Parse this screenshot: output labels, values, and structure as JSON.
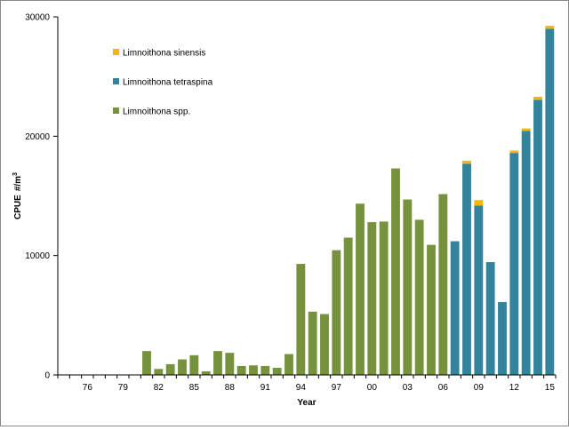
{
  "chart_data": {
    "type": "bar",
    "stacked": true,
    "title": "",
    "xlabel": "Year",
    "ylabel": "CPUE",
    "ylabel_unit": "#/m",
    "ylabel_unit_sup": "3",
    "ylim": [
      0,
      30000
    ],
    "yticks": [
      0,
      10000,
      20000,
      30000
    ],
    "ytick_labels": [
      "0",
      "10000",
      "20000",
      "30000"
    ],
    "legend_position": "upper-left",
    "grid": false,
    "x": [
      "74",
      "75",
      "76",
      "77",
      "78",
      "79",
      "80",
      "81",
      "82",
      "83",
      "84",
      "85",
      "86",
      "87",
      "88",
      "89",
      "90",
      "91",
      "92",
      "93",
      "94",
      "95",
      "96",
      "97",
      "98",
      "99",
      "00",
      "01",
      "02",
      "03",
      "04",
      "05",
      "06",
      "07",
      "08",
      "09",
      "10",
      "11",
      "12",
      "13",
      "14",
      "15"
    ],
    "x_tick_labels": [
      "76",
      "79",
      "82",
      "85",
      "88",
      "91",
      "94",
      "97",
      "00",
      "03",
      "06",
      "09",
      "12",
      "15"
    ],
    "series": [
      {
        "name": "Limnoithona spp.",
        "color": "#76923c",
        "values": [
          0,
          0,
          0,
          0,
          0,
          0,
          0,
          2000,
          500,
          900,
          1300,
          1650,
          300,
          2000,
          1850,
          750,
          800,
          750,
          600,
          1750,
          9300,
          5300,
          5100,
          10450,
          11500,
          14350,
          12800,
          12850,
          17300,
          14700,
          13000,
          10900,
          15150,
          0,
          0,
          0,
          0,
          0,
          0,
          0,
          0,
          0
        ]
      },
      {
        "name": "Limnoithona tetraspina",
        "color": "#31849b",
        "values": [
          0,
          0,
          0,
          0,
          0,
          0,
          0,
          0,
          0,
          0,
          0,
          0,
          0,
          0,
          0,
          0,
          0,
          0,
          0,
          0,
          0,
          0,
          0,
          0,
          0,
          0,
          0,
          0,
          0,
          0,
          0,
          0,
          0,
          11200,
          17700,
          14200,
          9450,
          6100,
          18600,
          20450,
          23050,
          29000
        ]
      },
      {
        "name": "Limnoithona sinensis",
        "color": "#f5b800",
        "values": [
          0,
          0,
          0,
          0,
          0,
          0,
          0,
          0,
          0,
          0,
          0,
          0,
          0,
          0,
          0,
          0,
          0,
          0,
          0,
          0,
          0,
          0,
          0,
          0,
          0,
          0,
          0,
          0,
          0,
          0,
          0,
          0,
          0,
          0,
          250,
          450,
          0,
          0,
          200,
          200,
          250,
          250
        ]
      }
    ]
  }
}
